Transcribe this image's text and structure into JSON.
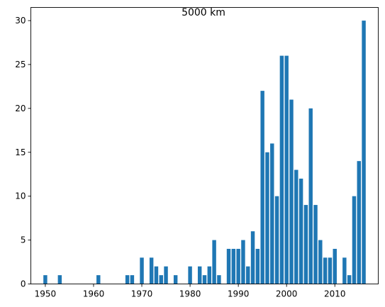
{
  "chart_data": {
    "type": "bar",
    "title": "5000 km",
    "xlabel": "",
    "ylabel": "",
    "xlim": [
      1947,
      2019
    ],
    "ylim": [
      0,
      31.5
    ],
    "xticks": [
      1950,
      1960,
      1970,
      1980,
      1990,
      2000,
      2010
    ],
    "yticks": [
      0,
      5,
      10,
      15,
      20,
      25,
      30
    ],
    "grid": false,
    "bar_color": "#1f77b4",
    "x": [
      1950,
      1953,
      1961,
      1967,
      1968,
      1970,
      1972,
      1973,
      1974,
      1975,
      1977,
      1980,
      1982,
      1983,
      1984,
      1985,
      1986,
      1988,
      1989,
      1990,
      1991,
      1992,
      1993,
      1994,
      1995,
      1996,
      1997,
      1998,
      1999,
      2000,
      2001,
      2002,
      2003,
      2004,
      2005,
      2006,
      2007,
      2008,
      2009,
      2010,
      2012,
      2013,
      2014,
      2015,
      2016
    ],
    "values": [
      1,
      1,
      1,
      1,
      1,
      3,
      3,
      2,
      1,
      2,
      1,
      2,
      2,
      1,
      2,
      5,
      1,
      4,
      4,
      4,
      5,
      2,
      6,
      4,
      22,
      15,
      16,
      10,
      26,
      26,
      21,
      13,
      12,
      9,
      20,
      9,
      5,
      3,
      3,
      4,
      3,
      1,
      10,
      14,
      30
    ]
  }
}
